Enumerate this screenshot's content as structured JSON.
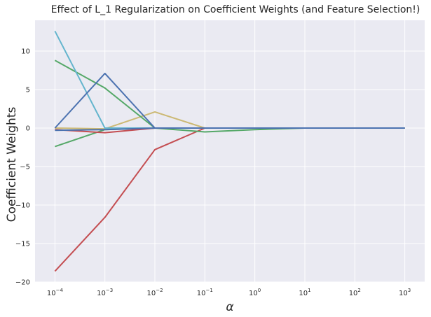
{
  "chart_data": {
    "type": "line",
    "title": "Effect of L_1 Regularization on Coefficient Weights (and Feature Selection!)",
    "xlabel": "α",
    "ylabel": "Coefficient Weights",
    "xscale": "log",
    "x": [
      0.0001,
      0.001,
      0.01,
      0.1,
      1,
      10,
      100,
      1000
    ],
    "x_tick_labels": [
      {
        "base": "10",
        "exp": "−4"
      },
      {
        "base": "10",
        "exp": "−3"
      },
      {
        "base": "10",
        "exp": "−2"
      },
      {
        "base": "10",
        "exp": "−1"
      },
      {
        "base": "10",
        "exp": "0"
      },
      {
        "base": "10",
        "exp": "1"
      },
      {
        "base": "10",
        "exp": "2"
      },
      {
        "base": "10",
        "exp": "3"
      }
    ],
    "xlim": [
      4e-05,
      2500
    ],
    "ylim": [
      -20,
      14
    ],
    "y_ticks": [
      -20,
      -15,
      -10,
      -5,
      0,
      5,
      10
    ],
    "y_tick_labels": [
      "−20",
      "−15",
      "−10",
      "−5",
      "0",
      "5",
      "10"
    ],
    "grid": true,
    "background": "#eaeaf2",
    "series": [
      {
        "color": "#c44e52",
        "values": [
          -18.6,
          -11.6,
          -2.8,
          0,
          0,
          0,
          0,
          0
        ]
      },
      {
        "color": "#55a868",
        "values": [
          -2.4,
          -0.2,
          0,
          -0.5,
          -0.2,
          0,
          0,
          0
        ]
      },
      {
        "color": "#c44e52",
        "values": [
          -0.2,
          -0.6,
          0,
          0,
          0,
          0,
          0,
          0
        ]
      },
      {
        "color": "#ccb974",
        "values": [
          0,
          -0.1,
          2.1,
          0,
          0,
          0,
          0,
          0
        ]
      },
      {
        "color": "#55a868",
        "values": [
          8.8,
          5.2,
          0,
          0,
          0,
          0,
          0,
          0
        ]
      },
      {
        "color": "#64b5cd",
        "values": [
          12.6,
          0,
          0,
          0,
          0,
          0,
          0,
          0
        ]
      },
      {
        "color": "#4c72b0",
        "values": [
          -0.3,
          -0.2,
          0,
          0,
          0,
          0,
          0,
          0
        ]
      },
      {
        "color": "#4c72b0",
        "values": [
          0,
          7.1,
          0,
          0,
          0,
          0,
          0,
          0
        ]
      }
    ]
  }
}
